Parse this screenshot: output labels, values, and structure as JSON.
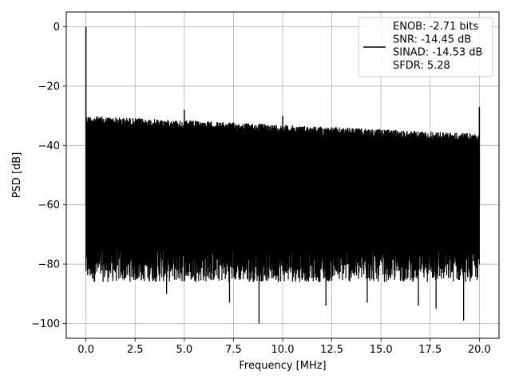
{
  "chart_data": {
    "type": "line",
    "xlabel": "Frequency [MHz]",
    "ylabel": "PSD [dB]",
    "xlim": [
      -1.0,
      21.0
    ],
    "ylim": [
      -105,
      5
    ],
    "xticks": [
      0.0,
      2.5,
      5.0,
      7.5,
      10.0,
      12.5,
      15.0,
      17.5,
      20.0
    ],
    "xtick_labels": [
      "0.0",
      "2.5",
      "5.0",
      "7.5",
      "10.0",
      "12.5",
      "15.0",
      "17.5",
      "20.0"
    ],
    "yticks": [
      0,
      -20,
      -40,
      -60,
      -80,
      -100
    ],
    "ytick_labels": [
      "0",
      "−20",
      "−40",
      "−60",
      "−80",
      "−100"
    ],
    "grid": true,
    "legend_position": "top-right",
    "colors": {
      "series": "#000000",
      "grid": "#b0b0b0",
      "axes": "#000000"
    },
    "series": [
      {
        "name_lines": [
          "ENOB: -2.71 bits",
          "SNR: -14.45 dB",
          "SINAD: -14.53 dB",
          "SFDR: 5.28"
        ],
        "peaks": [
          {
            "x": 0.0,
            "y": 0
          },
          {
            "x": 5.0,
            "y": -28
          },
          {
            "x": 10.0,
            "y": -30
          },
          {
            "x": 20.0,
            "y": -27
          }
        ],
        "noise_floor_start": {
          "x": 0.0,
          "top": -30,
          "bottom": -78
        },
        "noise_floor_end": {
          "x": 20.0,
          "top": -36,
          "bottom": -78
        },
        "deep_dips": [
          {
            "x": 8.8,
            "y": -100
          },
          {
            "x": 19.2,
            "y": -99
          },
          {
            "x": 7.3,
            "y": -93
          },
          {
            "x": 12.2,
            "y": -94
          },
          {
            "x": 17.8,
            "y": -95
          },
          {
            "x": 16.9,
            "y": -94
          },
          {
            "x": 14.3,
            "y": -93
          },
          {
            "x": 4.1,
            "y": -90
          }
        ]
      }
    ]
  }
}
